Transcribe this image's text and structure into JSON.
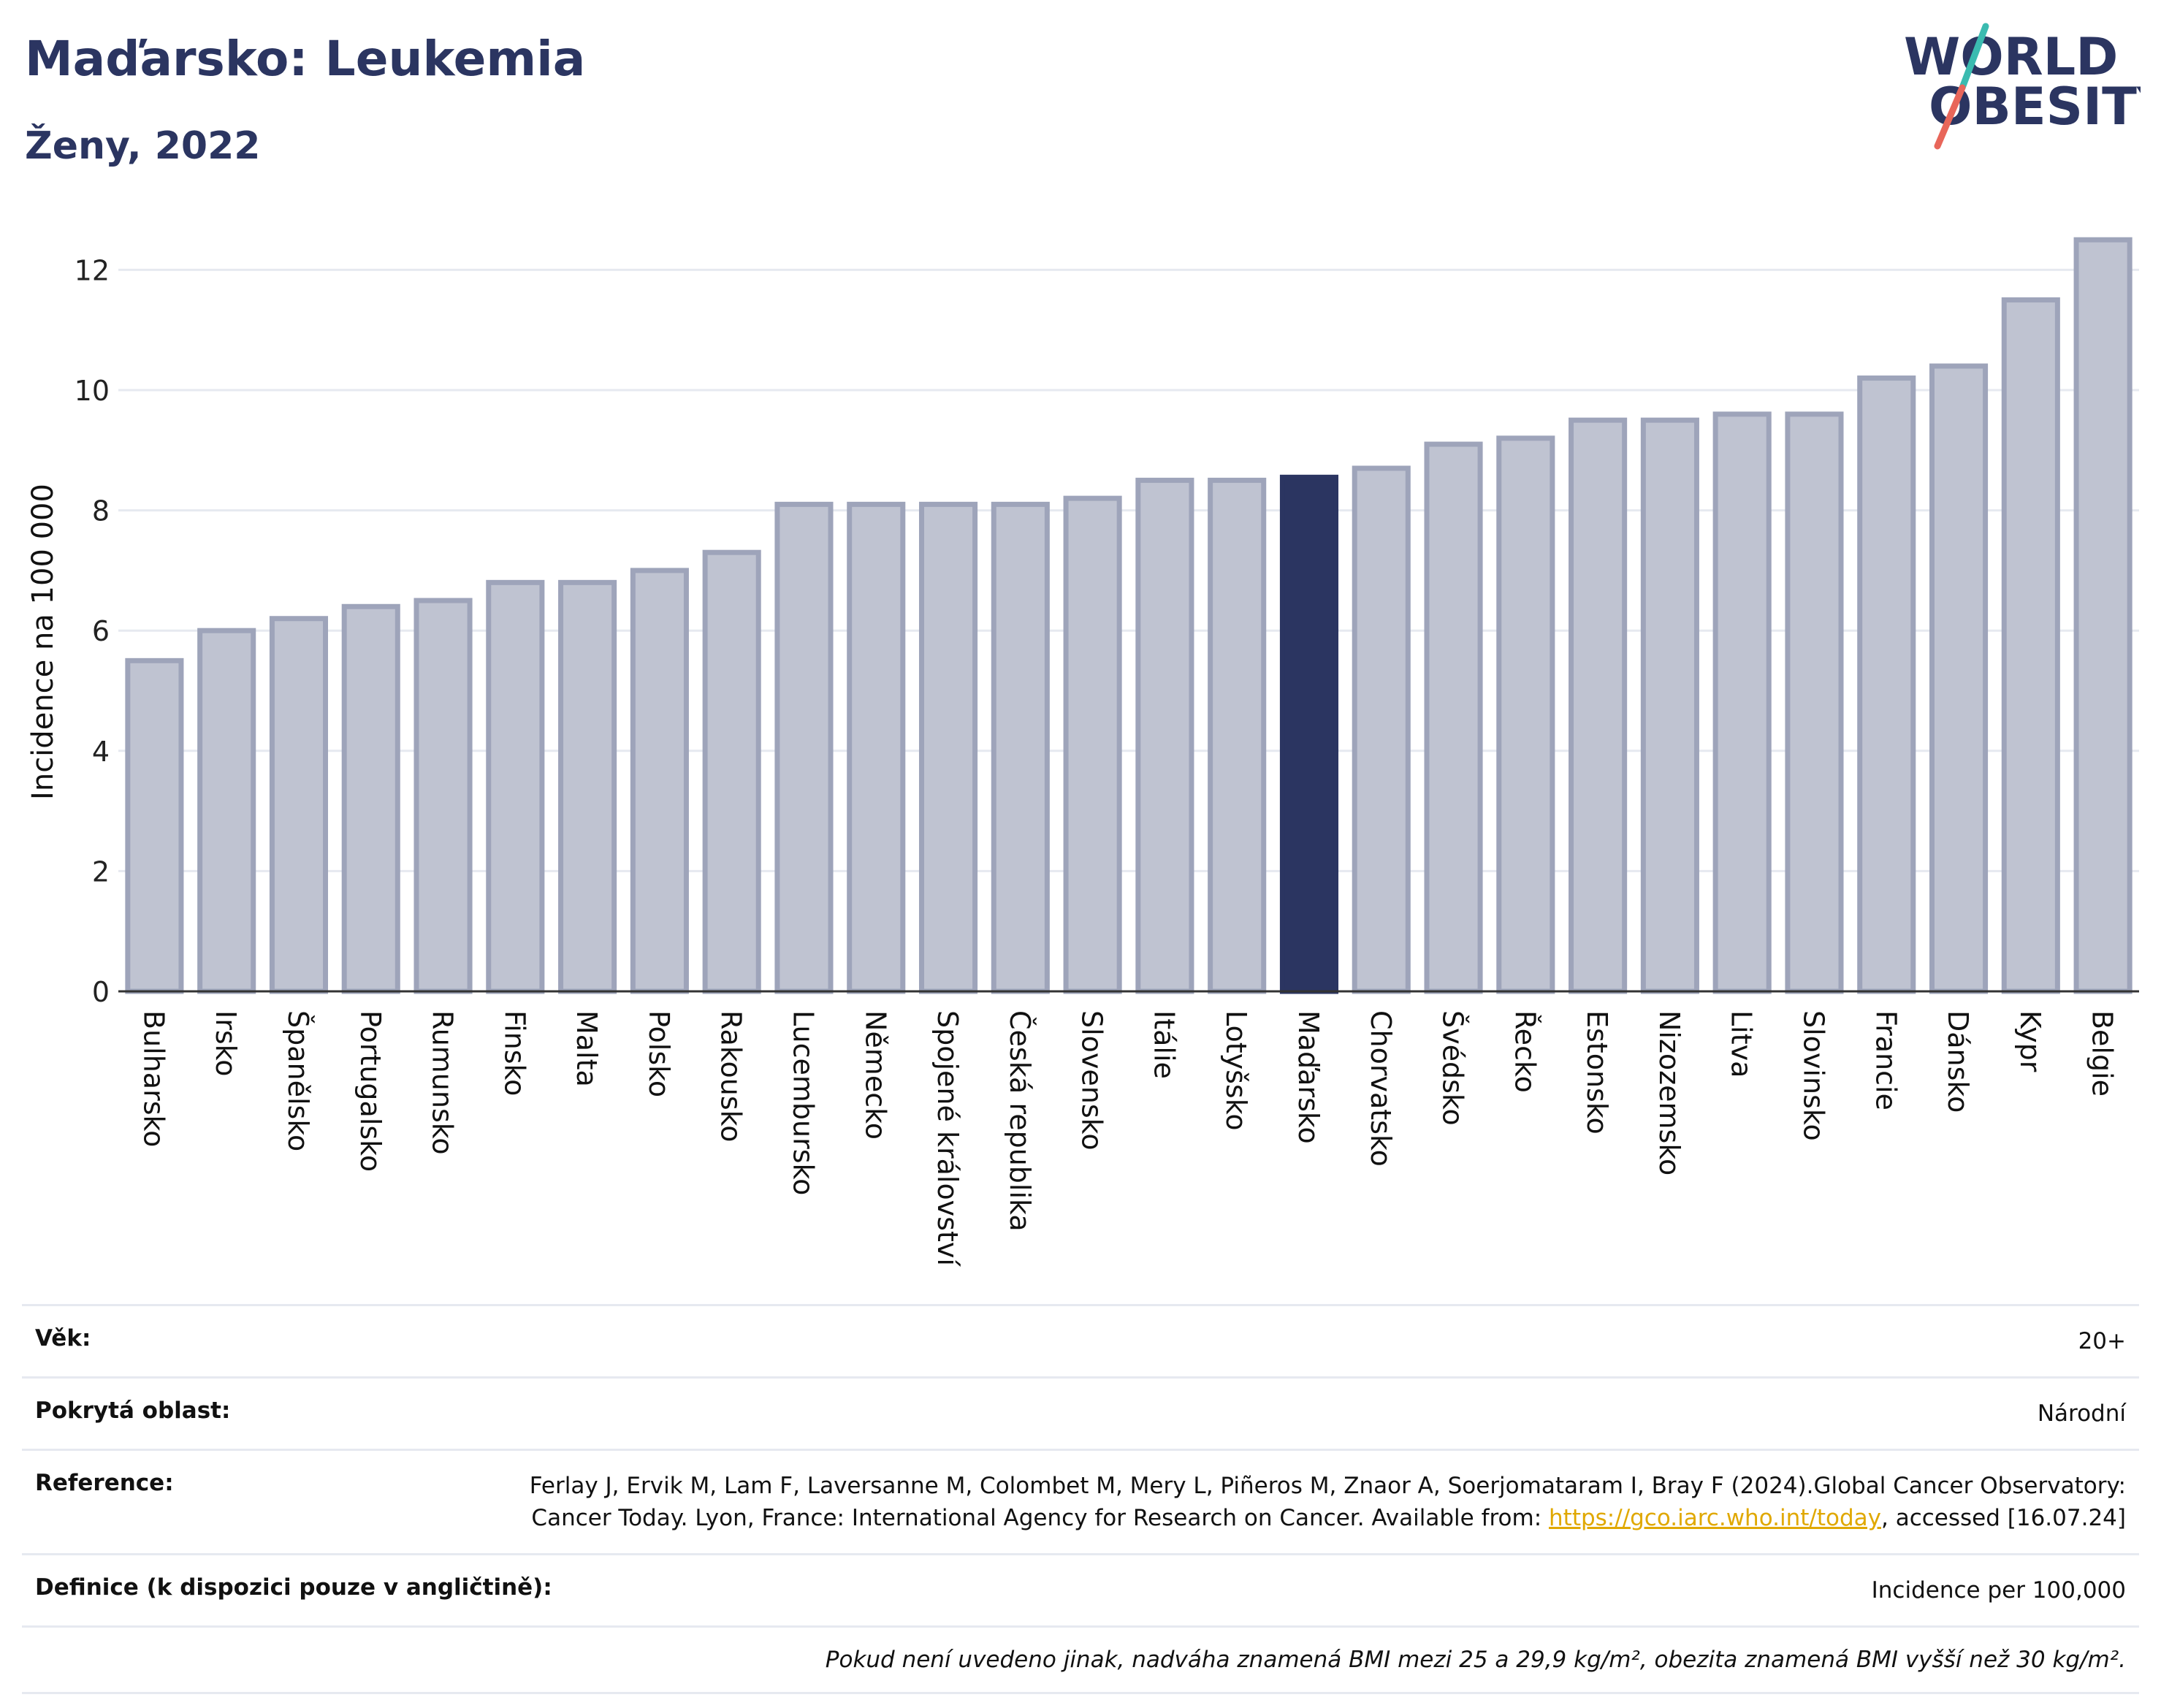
{
  "header": {
    "title": "Maďarsko: Leukemia",
    "subtitle": "Ženy, 2022",
    "logo_line1": "WORLD",
    "logo_line2": "OBESITY"
  },
  "colors": {
    "bar": "#bfc3d1",
    "bar_border": "#9ea4ba",
    "highlight": "#2b3561",
    "grid": "#e6e9f0",
    "axis": "#333333",
    "logo_slash_teal": "#3bbbb0",
    "logo_slash_red": "#e8665a"
  },
  "chart_data": {
    "type": "bar",
    "title": "",
    "xlabel": "",
    "ylabel": "Incidence na 100 000",
    "ylim": [
      0,
      12.6
    ],
    "yticks": [
      0,
      2,
      4,
      6,
      8,
      10,
      12
    ],
    "grid": true,
    "highlight": "Maďarsko",
    "categories": [
      "Bulharsko",
      "Irsko",
      "Španělsko",
      "Portugalsko",
      "Rumunsko",
      "Finsko",
      "Malta",
      "Polsko",
      "Rakousko",
      "Lucembursko",
      "Německo",
      "Spojené království",
      "Česká republika",
      "Slovensko",
      "Itálie",
      "Lotyšsko",
      "Maďarsko",
      "Chorvatsko",
      "Švédsko",
      "Řecko",
      "Estonsko",
      "Nizozemsko",
      "Litva",
      "Slovinsko",
      "Francie",
      "Dánsko",
      "Kypr",
      "Belgie"
    ],
    "values": [
      5.5,
      6.0,
      6.2,
      6.4,
      6.5,
      6.8,
      6.8,
      7.0,
      7.3,
      8.1,
      8.1,
      8.1,
      8.1,
      8.2,
      8.5,
      8.5,
      8.55,
      8.7,
      9.1,
      9.2,
      9.5,
      9.5,
      9.6,
      9.6,
      10.2,
      10.4,
      11.5,
      12.5
    ]
  },
  "meta": {
    "age_label": "Věk:",
    "age_value": "20+",
    "area_label": "Pokrytá oblast:",
    "area_value": "Národní",
    "reference_label": "Reference:",
    "reference_text_1": "Ferlay J, Ervik M, Lam F, Laversanne M, Colombet M, Mery L, Piñeros M, Znaor A, Soerjomataram I, Bray F (2024).Global Cancer Observatory: Cancer Today. Lyon, France: International Agency for Research on Cancer. Available from: ",
    "reference_link": "https://gco.iarc.who.int/today",
    "reference_text_2": ", accessed [16.07.24]",
    "definition_label": "Definice (k dispozici pouze v angličtině):",
    "definition_value": "Incidence per 100,000",
    "note": "Pokud není uvedeno jinak, nadváha znamená BMI mezi 25 a 29,9 kg/m², obezita znamená BMI vyšší než 30 kg/m²."
  }
}
